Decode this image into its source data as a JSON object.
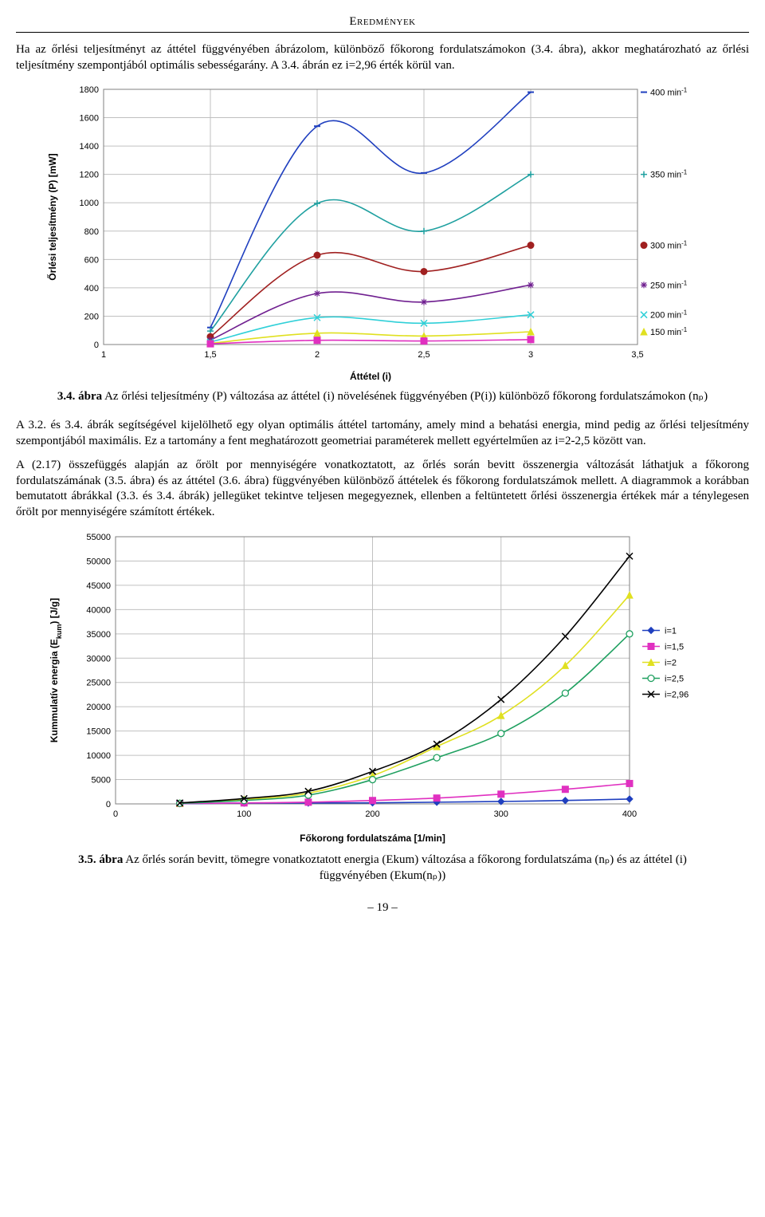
{
  "header": "Eredmények",
  "intro_para": "Ha az őrlési teljesítményt az áttétel függvényében ábrázolom, különböző főkorong fordulatszámokon (3.4. ábra), akkor meghatározható az őrlési teljesítmény szempontjából optimális sebességarány. A 3.4. ábrán ez i=2,96 érték körül van.",
  "chart1": {
    "type": "line",
    "x_label": "Áttétel (i)",
    "y_label": "Őrlési teljesítmény (P) [mW]",
    "xlim": [
      1,
      3.5
    ],
    "xticks": [
      1,
      1.5,
      2,
      2.5,
      3,
      3.5
    ],
    "ylim": [
      0,
      1800
    ],
    "yticks": [
      0,
      200,
      400,
      600,
      800,
      1000,
      1200,
      1400,
      1600,
      1800
    ],
    "plot_bg": "#ffffff",
    "grid_color": "#c0c0c0",
    "border_color": "#808080",
    "series": [
      {
        "label": "400 min⁻¹",
        "color": "#1f3fbf",
        "marker": "dash",
        "values": [
          [
            1.5,
            120
          ],
          [
            2,
            1540
          ],
          [
            2.5,
            1210
          ],
          [
            3,
            1780
          ]
        ]
      },
      {
        "label": "350 min⁻¹",
        "color": "#1fa0a0",
        "marker": "plus",
        "values": [
          [
            1.5,
            95
          ],
          [
            2,
            995
          ],
          [
            2.5,
            800
          ],
          [
            3,
            1200
          ]
        ]
      },
      {
        "label": "300 min⁻¹",
        "color": "#a02020",
        "marker": "circle",
        "values": [
          [
            1.5,
            55
          ],
          [
            2,
            630
          ],
          [
            2.5,
            515
          ],
          [
            3,
            700
          ]
        ]
      },
      {
        "label": "250 min⁻¹",
        "color": "#702090",
        "marker": "star",
        "values": [
          [
            1.5,
            32
          ],
          [
            2,
            360
          ],
          [
            2.5,
            300
          ],
          [
            3,
            420
          ]
        ]
      },
      {
        "label": "200 min⁻¹",
        "color": "#30d0d8",
        "marker": "x",
        "values": [
          [
            1.5,
            18
          ],
          [
            2,
            190
          ],
          [
            2.5,
            150
          ],
          [
            3,
            210
          ]
        ]
      },
      {
        "label": "150 min⁻¹",
        "color": "#e0e020",
        "marker": "triangle",
        "values": [
          [
            1.5,
            8
          ],
          [
            2,
            80
          ],
          [
            2.5,
            60
          ],
          [
            3,
            90
          ]
        ]
      },
      {
        "label": "",
        "color": "#e030c0",
        "marker": "square",
        "values": [
          [
            1.5,
            5
          ],
          [
            2,
            30
          ],
          [
            2.5,
            25
          ],
          [
            3,
            35
          ]
        ]
      }
    ]
  },
  "caption1_a": "3.4. ábra",
  "caption1_b": "Az őrlési teljesítmény (P) változása az áttétel (i) növelésének függvényében (P(i)) különböző főkorong fordulatszámokon (nₚ)",
  "para2": "A 3.2. és 3.4. ábrák segítségével kijelölhető egy olyan optimális áttétel tartomány, amely mind a behatási energia, mind pedig az őrlési teljesítmény szempontjából maximális. Ez a tartomány a fent meghatározott geometriai paraméterek mellett egyértelműen az i=2-2,5 között van.",
  "para3": "A (2.17) összefüggés alapján az őrölt por mennyiségére vonatkoztatott, az őrlés során bevitt összenergia változását láthatjuk a főkorong fordulatszámának (3.5. ábra) és az áttétel (3.6. ábra) függvényében különböző áttételek és főkorong fordulatszámok mellett. A diagrammok a korábban bemutatott ábrákkal (3.3. és 3.4. ábrák) jellegüket tekintve teljesen megegyeznek, ellenben a feltüntetett őrlési összenergia értékek már a ténylegesen őrölt por mennyiségére számított értékek.",
  "chart2": {
    "type": "line",
    "x_label": "Főkorong fordulatszáma [1/min]",
    "y_label": "Kummulatív energia (Ekum) [J/g]",
    "xlim": [
      0,
      400
    ],
    "xticks": [
      0,
      100,
      200,
      300,
      400
    ],
    "ylim": [
      0,
      55000
    ],
    "yticks": [
      0,
      5000,
      10000,
      15000,
      20000,
      25000,
      30000,
      35000,
      40000,
      45000,
      50000,
      55000
    ],
    "plot_bg": "#ffffff",
    "grid_color": "#c0c0c0",
    "border_color": "#808080",
    "legend": [
      {
        "label": "i=1",
        "color": "#1f3fbf",
        "marker": "diamond"
      },
      {
        "label": "i=1,5",
        "color": "#e030c0",
        "marker": "square"
      },
      {
        "label": "i=2",
        "color": "#e0e020",
        "marker": "triangle"
      },
      {
        "label": "i=2,5",
        "color": "#1fa060",
        "marker": "circle-open"
      },
      {
        "label": "i=2,96",
        "color": "#000000",
        "marker": "x"
      }
    ],
    "series": [
      {
        "color": "#1f3fbf",
        "marker": "diamond",
        "values": [
          [
            50,
            50
          ],
          [
            100,
            150
          ],
          [
            150,
            180
          ],
          [
            200,
            220
          ],
          [
            250,
            350
          ],
          [
            300,
            500
          ],
          [
            350,
            700
          ],
          [
            400,
            1000
          ]
        ]
      },
      {
        "color": "#e030c0",
        "marker": "square",
        "values": [
          [
            50,
            80
          ],
          [
            100,
            200
          ],
          [
            150,
            350
          ],
          [
            200,
            700
          ],
          [
            250,
            1200
          ],
          [
            300,
            2000
          ],
          [
            350,
            3000
          ],
          [
            400,
            4200
          ]
        ]
      },
      {
        "color": "#e0e020",
        "marker": "triangle",
        "values": [
          [
            50,
            150
          ],
          [
            100,
            900
          ],
          [
            150,
            2200
          ],
          [
            200,
            5800
          ],
          [
            250,
            11800
          ],
          [
            300,
            18200
          ],
          [
            350,
            28500
          ],
          [
            400,
            43000
          ]
        ]
      },
      {
        "color": "#1fa060",
        "marker": "circle-open",
        "values": [
          [
            50,
            120
          ],
          [
            100,
            700
          ],
          [
            150,
            1800
          ],
          [
            200,
            5000
          ],
          [
            250,
            9500
          ],
          [
            300,
            14500
          ],
          [
            350,
            22800
          ],
          [
            400,
            35000
          ]
        ]
      },
      {
        "color": "#000000",
        "marker": "x",
        "values": [
          [
            50,
            200
          ],
          [
            100,
            1100
          ],
          [
            150,
            2600
          ],
          [
            200,
            6700
          ],
          [
            250,
            12300
          ],
          [
            300,
            21500
          ],
          [
            350,
            34500
          ],
          [
            400,
            51000
          ]
        ]
      }
    ]
  },
  "caption2_a": "3.5. ábra",
  "caption2_b": "Az őrlés során bevitt, tömegre vonatkoztatott energia (Ekum) változása a főkorong fordulatszáma (nₚ) és az áttétel (i) függvényében (Ekum(nₚ))",
  "page_num": "19"
}
